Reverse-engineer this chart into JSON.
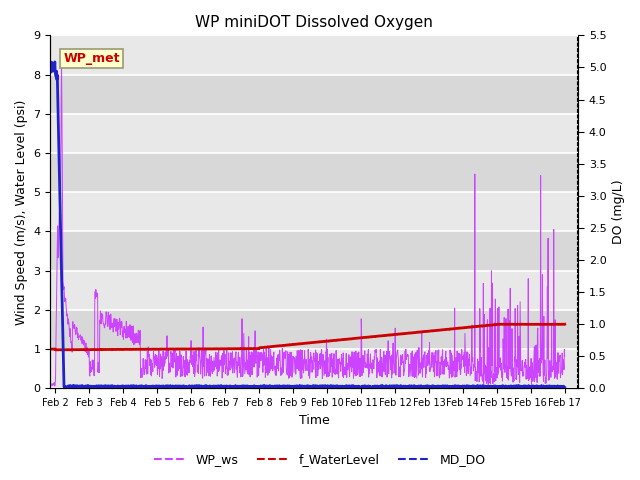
{
  "title": "WP miniDOT Dissolved Oxygen",
  "xlabel": "Time",
  "ylabel_left": "Wind Speed (m/s), Water Level (psi)",
  "ylabel_right": "DO (mg/L)",
  "ylim_left": [
    0.0,
    9.0
  ],
  "ylim_right": [
    0.0,
    5.5
  ],
  "yticks_left": [
    0.0,
    1.0,
    2.0,
    3.0,
    4.0,
    5.0,
    6.0,
    7.0,
    8.0,
    9.0
  ],
  "yticks_right": [
    0.0,
    0.5,
    1.0,
    1.5,
    2.0,
    2.5,
    3.0,
    3.5,
    4.0,
    4.5,
    5.0,
    5.5
  ],
  "xtick_labels": [
    "Feb 2",
    "Feb 3",
    "Feb 4",
    "Feb 5",
    "Feb 6",
    "Feb 7",
    "Feb 8",
    "Feb 9",
    "Feb 10",
    "Feb 11",
    "Feb 12",
    "Feb 13",
    "Feb 14",
    "Feb 15",
    "Feb 16",
    "Feb 17"
  ],
  "box_label": "WP_met",
  "box_facecolor": "#ffffcc",
  "box_edgecolor": "#999977",
  "box_text_color": "#cc0000",
  "line_wp_ws_color": "#cc44ff",
  "line_water_level_color": "#cc0000",
  "line_md_do_color": "#2222cc",
  "band_colors": [
    "#e8e8e8",
    "#d8d8d8"
  ],
  "legend_labels": [
    "WP_ws",
    "f_WaterLevel",
    "MD_DO"
  ],
  "legend_colors": [
    "#cc44ff",
    "#cc0000",
    "#2222cc"
  ],
  "figsize": [
    6.4,
    4.8
  ],
  "dpi": 100,
  "title_fontsize": 11,
  "axis_fontsize": 9,
  "tick_fontsize": 8,
  "xtick_fontsize": 7
}
